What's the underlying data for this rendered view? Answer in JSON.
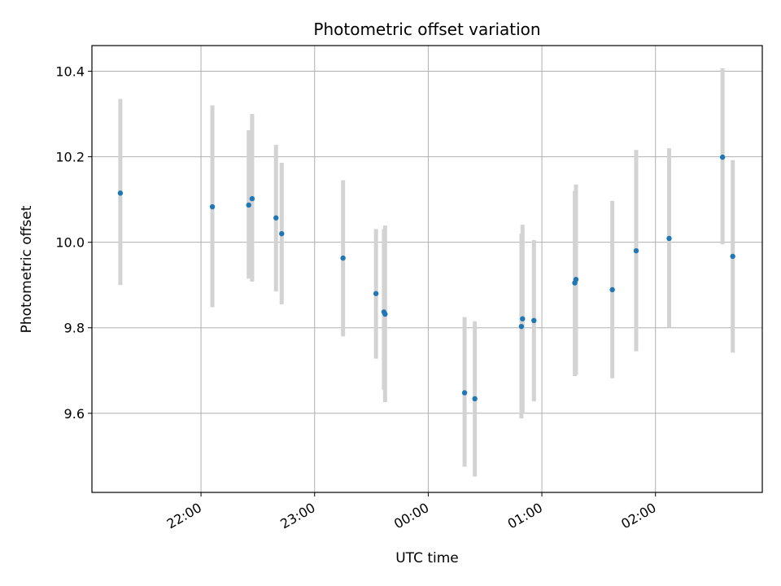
{
  "chart_data": {
    "type": "scatter",
    "title": "Photometric offset variation",
    "xlabel": "UTC time",
    "ylabel": "Photometric offset",
    "x_unit": "hours since 22:00 UTC",
    "xlim": [
      -0.96,
      4.94
    ],
    "ylim": [
      9.415,
      10.46
    ],
    "grid": true,
    "colors": {
      "point": "#1f77b4",
      "errorbar": "#d3d3d3",
      "grid": "#b0b0b0",
      "axis": "#000000"
    },
    "x_ticks": [
      {
        "value": 0,
        "label": "22:00"
      },
      {
        "value": 1,
        "label": "23:00"
      },
      {
        "value": 2,
        "label": "00:00"
      },
      {
        "value": 3,
        "label": "01:00"
      },
      {
        "value": 4,
        "label": "02:00"
      }
    ],
    "y_ticks": [
      {
        "value": 9.6,
        "label": "9.6"
      },
      {
        "value": 9.8,
        "label": "9.8"
      },
      {
        "value": 10.0,
        "label": "10.0"
      },
      {
        "value": 10.2,
        "label": "10.2"
      },
      {
        "value": 10.4,
        "label": "10.4"
      }
    ],
    "series": [
      {
        "name": "offset",
        "points": [
          {
            "x": -0.71,
            "y": 10.115,
            "err_low": 9.9,
            "err_high": 10.335
          },
          {
            "x": 0.1,
            "y": 10.083,
            "err_low": 9.848,
            "err_high": 10.32
          },
          {
            "x": 0.42,
            "y": 10.087,
            "err_low": 9.915,
            "err_high": 10.262
          },
          {
            "x": 0.45,
            "y": 10.102,
            "err_low": 9.908,
            "err_high": 10.3
          },
          {
            "x": 0.66,
            "y": 10.057,
            "err_low": 9.885,
            "err_high": 10.228
          },
          {
            "x": 0.71,
            "y": 10.02,
            "err_low": 9.855,
            "err_high": 10.186
          },
          {
            "x": 1.25,
            "y": 9.963,
            "err_low": 9.78,
            "err_high": 10.145
          },
          {
            "x": 1.54,
            "y": 9.88,
            "err_low": 9.728,
            "err_high": 10.031
          },
          {
            "x": 1.61,
            "y": 9.837,
            "err_low": 9.655,
            "err_high": 10.031
          },
          {
            "x": 1.62,
            "y": 9.832,
            "err_low": 9.626,
            "err_high": 10.039
          },
          {
            "x": 2.32,
            "y": 9.648,
            "err_low": 9.475,
            "err_high": 9.825
          },
          {
            "x": 2.41,
            "y": 9.634,
            "err_low": 9.452,
            "err_high": 9.815
          },
          {
            "x": 2.82,
            "y": 9.803,
            "err_low": 9.588,
            "err_high": 10.02
          },
          {
            "x": 2.83,
            "y": 9.821,
            "err_low": 9.6,
            "err_high": 10.041
          },
          {
            "x": 2.93,
            "y": 9.817,
            "err_low": 9.628,
            "err_high": 10.005
          },
          {
            "x": 3.29,
            "y": 9.905,
            "err_low": 9.687,
            "err_high": 10.12
          },
          {
            "x": 3.3,
            "y": 9.913,
            "err_low": 9.69,
            "err_high": 10.135
          },
          {
            "x": 3.62,
            "y": 9.889,
            "err_low": 9.682,
            "err_high": 10.097
          },
          {
            "x": 3.83,
            "y": 9.98,
            "err_low": 9.745,
            "err_high": 10.216
          },
          {
            "x": 4.12,
            "y": 10.009,
            "err_low": 9.8,
            "err_high": 10.22
          },
          {
            "x": 4.59,
            "y": 10.199,
            "err_low": 9.995,
            "err_high": 10.407
          },
          {
            "x": 4.68,
            "y": 9.967,
            "err_low": 9.742,
            "err_high": 10.192
          }
        ]
      }
    ]
  }
}
